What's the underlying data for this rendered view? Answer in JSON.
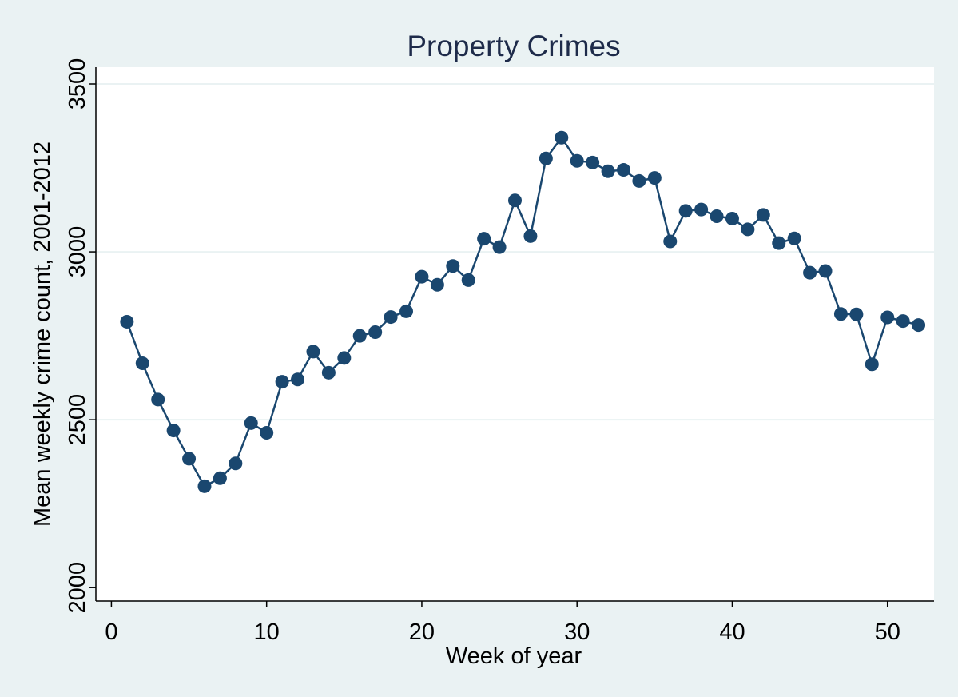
{
  "chart_data": {
    "type": "line",
    "title": "Property Crimes",
    "xlabel": "Week of year",
    "ylabel": "Mean weekly crime count, 2001-2012",
    "xlim": [
      -1,
      53
    ],
    "ylim": [
      1960,
      3550
    ],
    "x_ticks": [
      0,
      10,
      20,
      30,
      40,
      50
    ],
    "y_ticks": [
      2000,
      2500,
      3000,
      3500
    ],
    "grid": "horizontal",
    "legend": "none",
    "colors": {
      "background": "#eaf2f3",
      "plot_background": "#ffffff",
      "series": "#1a476f",
      "grid": "#eaf2f3",
      "text": "#1e2b4a"
    },
    "series": [
      {
        "x": [
          1,
          2,
          3,
          4,
          5,
          6,
          7,
          8,
          9,
          10,
          11,
          12,
          13,
          14,
          15,
          16,
          17,
          18,
          19,
          20,
          21,
          22,
          23,
          24,
          25,
          26,
          27,
          28,
          29,
          30,
          31,
          32,
          33,
          34,
          35,
          36,
          37,
          38,
          39,
          40,
          41,
          42,
          43,
          44,
          45,
          46,
          47,
          48,
          49,
          50,
          51,
          52
        ],
        "values": [
          2792,
          2668,
          2560,
          2468,
          2384,
          2302,
          2326,
          2370,
          2490,
          2461,
          2613,
          2620,
          2703,
          2640,
          2684,
          2750,
          2761,
          2806,
          2823,
          2926,
          2902,
          2958,
          2916,
          3039,
          3014,
          3153,
          3047,
          3278,
          3340,
          3271,
          3266,
          3240,
          3244,
          3211,
          3220,
          3031,
          3122,
          3126,
          3106,
          3099,
          3067,
          3110,
          3026,
          3040,
          2938,
          2943,
          2815,
          2814,
          2665,
          2805,
          2794,
          2782
        ]
      }
    ]
  }
}
